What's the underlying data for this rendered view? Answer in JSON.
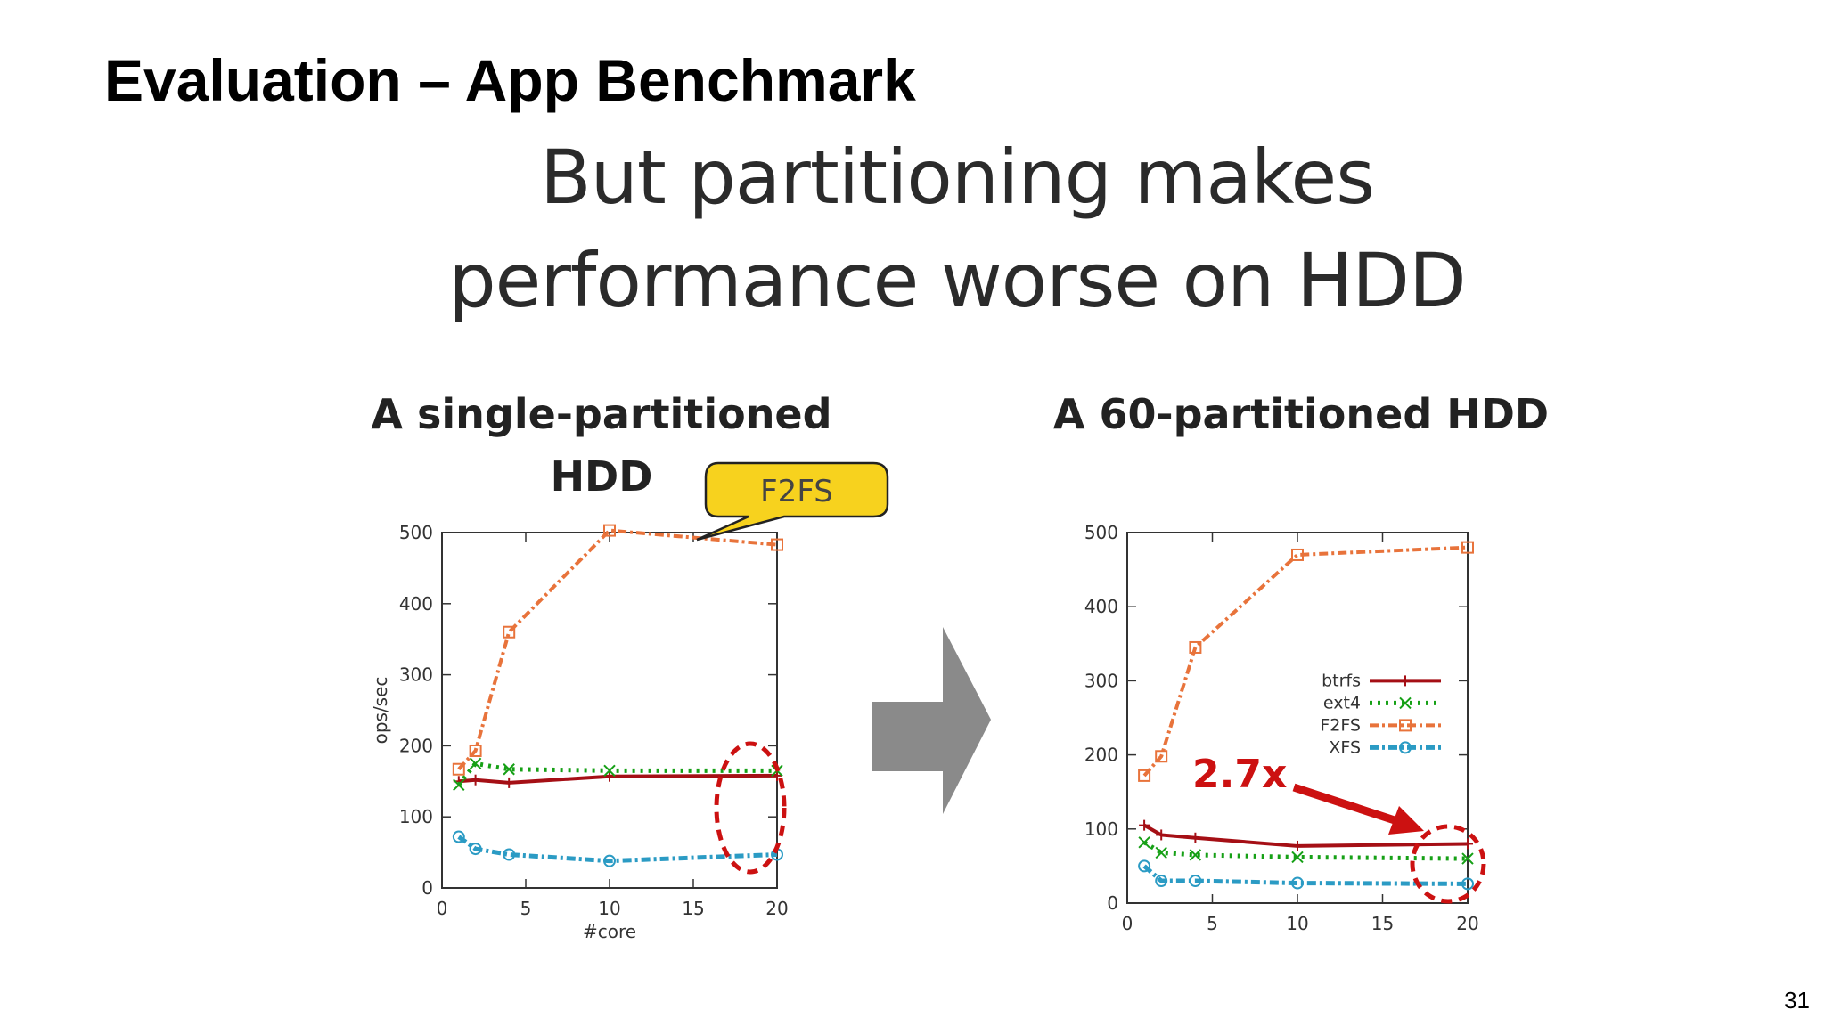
{
  "slide": {
    "title": "Evaluation – App Benchmark",
    "heading_line1": "But partitioning makes",
    "heading_line2": "performance  worse on HDD",
    "page_number": "31"
  },
  "colors": {
    "btrfs": "#a50f15",
    "ext4": "#16a016",
    "F2FS": "#e8733b",
    "XFS": "#2b9bc4",
    "arrow_gray": "#8a8a8a",
    "callout_fill": "#f7d21e",
    "highlight_red": "#cc1111"
  },
  "annotations": {
    "callout": "F2FS",
    "ratio": "2.7x"
  },
  "chart_data": [
    {
      "type": "line",
      "title": "A single-partitioned HDD",
      "xlabel": "#core",
      "ylabel": "ops/sec",
      "xlim": [
        0,
        20
      ],
      "ylim": [
        0,
        500
      ],
      "xticks": [
        0,
        5,
        10,
        15,
        20
      ],
      "yticks": [
        0,
        100,
        200,
        300,
        400,
        500
      ],
      "x": [
        1,
        2,
        4,
        10,
        20
      ],
      "series": [
        {
          "name": "btrfs",
          "values": [
            150,
            152,
            148,
            157,
            158
          ]
        },
        {
          "name": "ext4",
          "values": [
            145,
            175,
            167,
            165,
            165
          ]
        },
        {
          "name": "F2FS",
          "values": [
            167,
            193,
            360,
            503,
            483
          ]
        },
        {
          "name": "XFS",
          "values": [
            72,
            55,
            47,
            38,
            47
          ]
        }
      ]
    },
    {
      "type": "line",
      "title": "A 60-partitioned HDD",
      "xlabel": "",
      "ylabel": "",
      "xlim": [
        0,
        20
      ],
      "ylim": [
        0,
        500
      ],
      "xticks": [
        0,
        5,
        10,
        15,
        20
      ],
      "yticks": [
        0,
        100,
        200,
        300,
        400,
        500
      ],
      "legend": "right",
      "x": [
        1,
        2,
        4,
        10,
        20
      ],
      "series": [
        {
          "name": "btrfs",
          "values": [
            105,
            92,
            88,
            77,
            80
          ]
        },
        {
          "name": "ext4",
          "values": [
            82,
            68,
            65,
            62,
            60
          ]
        },
        {
          "name": "F2FS",
          "values": [
            172,
            198,
            345,
            470,
            480
          ]
        },
        {
          "name": "XFS",
          "values": [
            50,
            30,
            30,
            27,
            26
          ]
        }
      ]
    }
  ]
}
